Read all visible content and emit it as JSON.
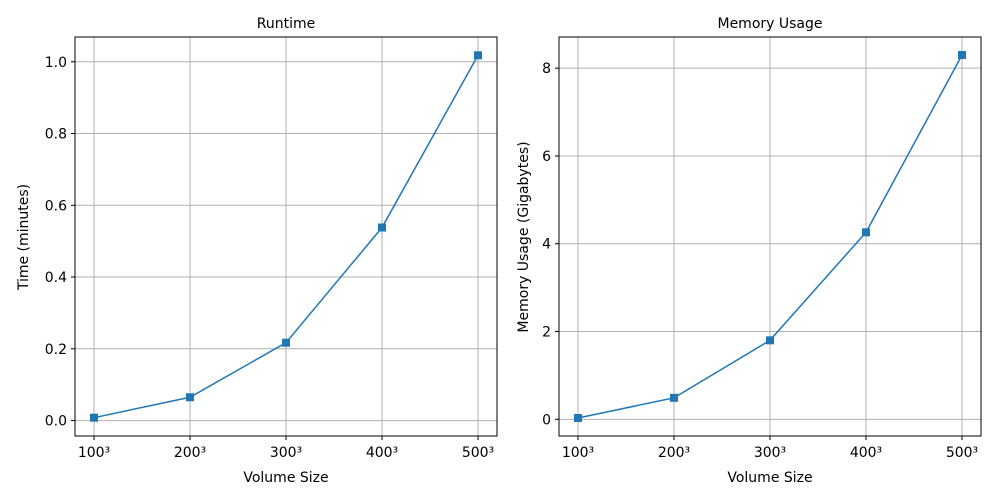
{
  "chart_data": [
    {
      "type": "line",
      "title": "Runtime",
      "xlabel": "Volume Size",
      "ylabel": "Time (minutes)",
      "categories": [
        "100³",
        "200³",
        "300³",
        "400³",
        "500³"
      ],
      "series": [
        {
          "values": [
            0.008,
            0.065,
            0.217,
            0.538,
            1.018
          ],
          "color": "#1f77b4",
          "marker": "square"
        }
      ],
      "yticks": [
        "0.0",
        "0.2",
        "0.4",
        "0.6",
        "0.8",
        "1.0"
      ],
      "ytick_values": [
        0.0,
        0.2,
        0.4,
        0.6,
        0.8,
        1.0
      ],
      "ylim": [
        -0.043,
        1.069
      ],
      "grid": true
    },
    {
      "type": "line",
      "title": "Memory Usage",
      "xlabel": "Volume Size",
      "ylabel": "Memory Usage (Gigabytes)",
      "categories": [
        "100³",
        "200³",
        "300³",
        "400³",
        "500³"
      ],
      "series": [
        {
          "values": [
            0.03,
            0.49,
            1.8,
            4.26,
            8.3
          ],
          "color": "#1f77b4",
          "marker": "square"
        }
      ],
      "yticks": [
        "0",
        "2",
        "4",
        "6",
        "8"
      ],
      "ytick_values": [
        0,
        2,
        4,
        6,
        8
      ],
      "ylim": [
        -0.38,
        8.71
      ],
      "grid": true
    }
  ]
}
